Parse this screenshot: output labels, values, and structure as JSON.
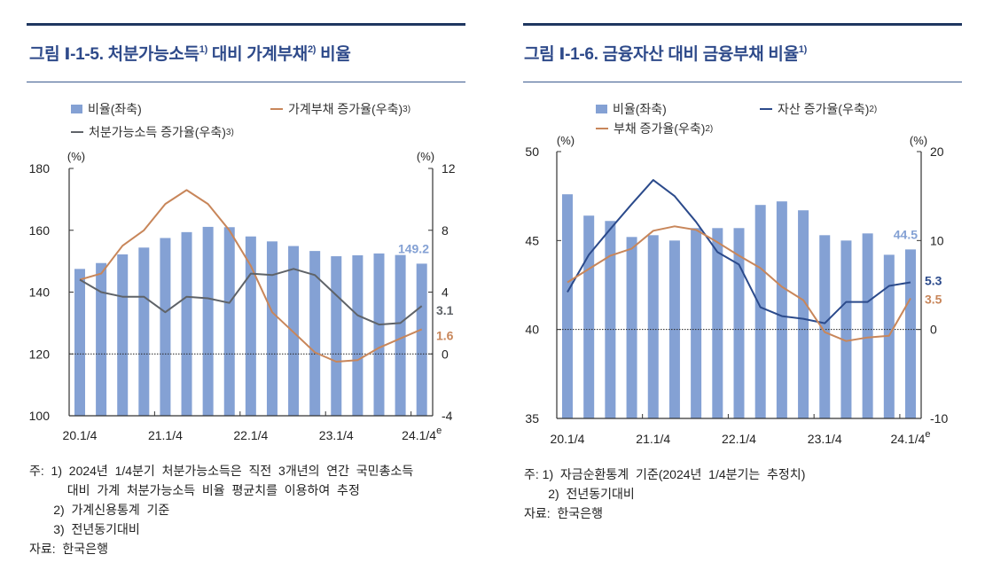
{
  "colors": {
    "bar": "#84a1d4",
    "orange": "#c8865a",
    "gray": "#5f6368",
    "navy": "#2b4a8b",
    "title": "#2e4a8a"
  },
  "left": {
    "title_parts": [
      {
        "text": "그림  Ⅰ-1-5. 처분가능소득",
        "sup": "1)"
      },
      {
        "text": " 대비  가계부채",
        "sup": "2)"
      },
      {
        "text": " 비율",
        "sup": ""
      }
    ],
    "legend": [
      {
        "label": "비율(좌축)",
        "sup": "",
        "kind": "bar",
        "color": "#84a1d4"
      },
      {
        "label": "가계부채  증가율(우축)",
        "sup": "3)",
        "kind": "line",
        "color": "#c8865a"
      },
      {
        "label": "처분가능소득  증가율(우축)",
        "sup": "3)",
        "kind": "line",
        "color": "#5f6368"
      }
    ],
    "notes": [
      "주:  1)  2024년  1/4분기  처분가능소득은  직전  3개년의  연간  국민총소득",
      "           대비  가계  처분가능소득  비율  평균치를  이용하여  추정",
      "       2)  가계신용통계  기준",
      "       3)  전년동기대비",
      "자료:  한국은행"
    ]
  },
  "right": {
    "title_parts": [
      {
        "text": "그림  Ⅰ-1-6. 금융자산  대비  금융부채  비율",
        "sup": "1)"
      }
    ],
    "legend": [
      {
        "label": "비율(좌축)",
        "sup": "",
        "kind": "bar",
        "color": "#84a1d4"
      },
      {
        "label": "자산  증가율(우축)",
        "sup": "2)",
        "kind": "line",
        "color": "#2b4a8b"
      },
      {
        "label": "부채  증가율(우축)",
        "sup": "2)",
        "kind": "line",
        "color": "#c8865a"
      }
    ],
    "notes": [
      "주: 1)  자금순환통계  기준(2024년  1/4분기는  추정치)",
      "       2)  전년동기대비",
      "자료:  한국은행"
    ]
  },
  "chart_data": [
    {
      "type": "bar+line",
      "title": "그림 Ⅰ-1-5. 처분가능소득1) 대비 가계부채2) 비율",
      "y_unit_left": "(%)",
      "y_unit_right": "(%)",
      "x_tick_labels": [
        "20.1/4",
        "21.1/4",
        "22.1/4",
        "23.1/4",
        "24.1/4"
      ],
      "x_tick_sup": "e",
      "x": [
        "20.1/4",
        "20.2/4",
        "20.3/4",
        "20.4/4",
        "21.1/4",
        "21.2/4",
        "21.3/4",
        "21.4/4",
        "22.1/4",
        "22.2/4",
        "22.3/4",
        "22.4/4",
        "23.1/4",
        "23.2/4",
        "23.3/4",
        "23.4/4",
        "24.1/4"
      ],
      "ylim_left": [
        100,
        180
      ],
      "yticks_left": [
        "180",
        "160",
        "140",
        "120",
        "100"
      ],
      "ylim_right": [
        -4,
        12
      ],
      "yticks_right": [
        "12",
        "8",
        "4",
        "0",
        "-4"
      ],
      "zero_line_right": 0,
      "grid": false,
      "series": [
        {
          "name": "비율(좌축)",
          "axis": "left",
          "kind": "bar",
          "color": "#84a1d4",
          "values": [
            147.5,
            149.4,
            152.2,
            154.4,
            157.5,
            159.4,
            161.1,
            161.0,
            158.0,
            156.4,
            154.9,
            153.3,
            151.6,
            151.9,
            152.5,
            152.0,
            149.2
          ],
          "end_label": "149.2"
        },
        {
          "name": "가계부채 증가율(우축)",
          "axis": "right",
          "kind": "line",
          "color": "#c8865a",
          "values": [
            4.8,
            5.2,
            7.0,
            8.0,
            9.7,
            10.6,
            9.7,
            8.0,
            5.7,
            2.7,
            1.4,
            0.1,
            -0.5,
            -0.4,
            0.4,
            1.0,
            1.6
          ],
          "end_label": "1.6"
        },
        {
          "name": "처분가능소득 증가율(우축)",
          "axis": "right",
          "kind": "line",
          "color": "#5f6368",
          "values": [
            4.8,
            4.0,
            3.7,
            3.7,
            2.7,
            3.7,
            3.6,
            3.3,
            5.2,
            5.1,
            5.5,
            5.1,
            3.8,
            2.5,
            1.9,
            2.0,
            3.1
          ],
          "end_label": "3.1"
        }
      ]
    },
    {
      "type": "bar+line",
      "title": "그림 Ⅰ-1-6. 금융자산 대비 금융부채 비율1)",
      "y_unit_left": "(%)",
      "y_unit_right": "(%)",
      "x_tick_labels": [
        "20.1/4",
        "21.1/4",
        "22.1/4",
        "23.1/4",
        "24.1/4"
      ],
      "x_tick_sup": "e",
      "x": [
        "20.1/4",
        "20.2/4",
        "20.3/4",
        "20.4/4",
        "21.1/4",
        "21.2/4",
        "21.3/4",
        "21.4/4",
        "22.1/4",
        "22.2/4",
        "22.3/4",
        "22.4/4",
        "23.1/4",
        "23.2/4",
        "23.3/4",
        "23.4/4",
        "24.1/4"
      ],
      "ylim_left": [
        35,
        50
      ],
      "yticks_left": [
        "50",
        "45",
        "40",
        "35"
      ],
      "ylim_right": [
        -10,
        20
      ],
      "yticks_right": [
        "20",
        "10",
        "0",
        "-10"
      ],
      "zero_line_right": 0,
      "grid": false,
      "series": [
        {
          "name": "비율(좌축)",
          "axis": "left",
          "kind": "bar",
          "color": "#84a1d4",
          "values": [
            47.6,
            46.4,
            46.1,
            45.2,
            45.3,
            45.0,
            45.7,
            45.7,
            45.7,
            47.0,
            47.2,
            46.7,
            45.3,
            45.0,
            45.4,
            44.2,
            44.5
          ],
          "end_label": "44.5"
        },
        {
          "name": "자산 증가율(우축)",
          "axis": "right",
          "kind": "line",
          "color": "#2b4a8b",
          "values": [
            4.2,
            8.4,
            11.3,
            14.1,
            16.8,
            15.0,
            12.1,
            8.7,
            7.3,
            2.5,
            1.5,
            1.2,
            0.7,
            3.1,
            3.1,
            4.9,
            5.3
          ],
          "end_label": "5.3"
        },
        {
          "name": "부채 증가율(우축)",
          "axis": "right",
          "kind": "line",
          "color": "#c8865a",
          "values": [
            5.3,
            6.8,
            8.3,
            9.1,
            11.1,
            11.6,
            11.2,
            9.8,
            8.3,
            6.9,
            4.8,
            3.3,
            -0.3,
            -1.3,
            -0.9,
            -0.7,
            3.5
          ],
          "end_label": "3.5"
        }
      ]
    }
  ]
}
